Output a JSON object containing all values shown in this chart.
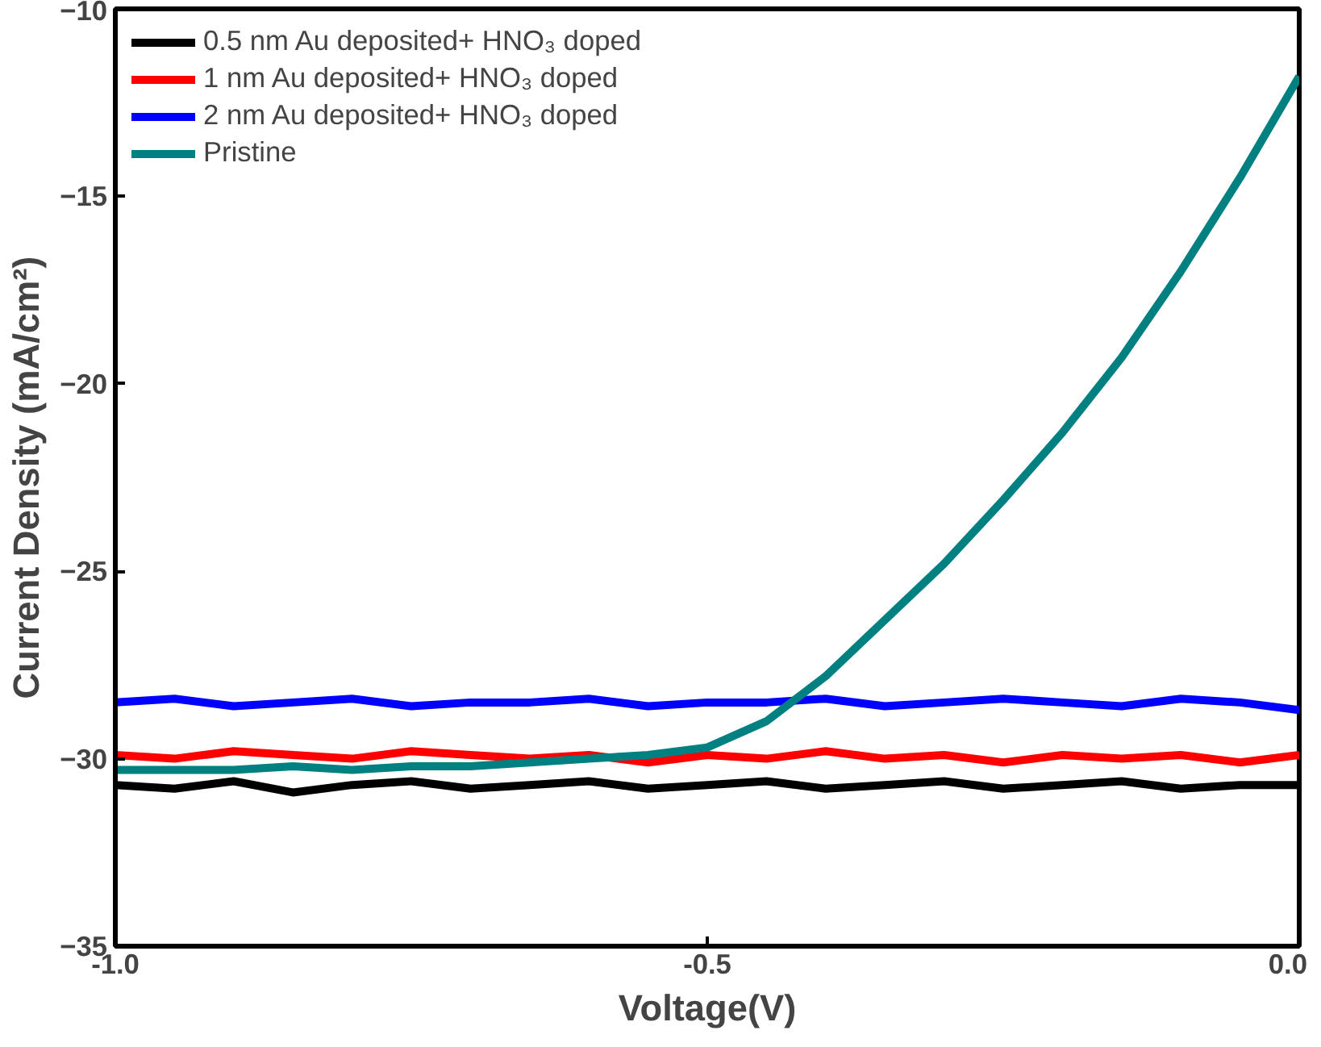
{
  "chart_data": {
    "type": "line",
    "xlabel": "Voltage(V)",
    "ylabel": "Current Density (mA/cm²)",
    "xlim": [
      -1.0,
      0.0
    ],
    "ylim": [
      -35,
      -10
    ],
    "xticks": [
      {
        "value": -1.0,
        "label": "-1.0"
      },
      {
        "value": -0.5,
        "label": "-0.5"
      },
      {
        "value": 0.0,
        "label": "0.0"
      }
    ],
    "yticks": [
      -35,
      -30,
      -25,
      -20,
      -15,
      -10
    ],
    "grid": false,
    "legend": "top left",
    "line_style": "solid",
    "marker": "none",
    "x": [
      -1.0,
      -0.95,
      -0.9,
      -0.85,
      -0.8,
      -0.75,
      -0.7,
      -0.65,
      -0.6,
      -0.55,
      -0.5,
      -0.45,
      -0.4,
      -0.35,
      -0.3,
      -0.25,
      -0.2,
      -0.15,
      -0.1,
      -0.05,
      0.0
    ],
    "series": [
      {
        "name": "0.5 nm Au deposited+ HNO₃ doped",
        "color": "#000000",
        "values": [
          -30.7,
          -30.8,
          -30.6,
          -30.9,
          -30.7,
          -30.6,
          -30.8,
          -30.7,
          -30.6,
          -30.8,
          -30.7,
          -30.6,
          -30.8,
          -30.7,
          -30.6,
          -30.8,
          -30.7,
          -30.6,
          -30.8,
          -30.7,
          -30.7
        ]
      },
      {
        "name": "1 nm Au deposited+ HNO₃ doped",
        "color": "#ff0000",
        "values": [
          -29.9,
          -30.0,
          -29.8,
          -29.9,
          -30.0,
          -29.8,
          -29.9,
          -30.0,
          -29.9,
          -30.1,
          -29.9,
          -30.0,
          -29.8,
          -30.0,
          -29.9,
          -30.1,
          -29.9,
          -30.0,
          -29.9,
          -30.1,
          -29.9
        ]
      },
      {
        "name": "2 nm Au deposited+ HNO₃ doped",
        "color": "#0000ff",
        "values": [
          -28.5,
          -28.4,
          -28.6,
          -28.5,
          -28.4,
          -28.6,
          -28.5,
          -28.5,
          -28.4,
          -28.6,
          -28.5,
          -28.5,
          -28.4,
          -28.6,
          -28.5,
          -28.4,
          -28.5,
          -28.6,
          -28.4,
          -28.5,
          -28.7
        ]
      },
      {
        "name": "Pristine",
        "color": "#008080",
        "values": [
          -30.3,
          -30.3,
          -30.3,
          -30.2,
          -30.3,
          -30.2,
          -30.2,
          -30.1,
          -30.0,
          -29.9,
          -29.7,
          -29.0,
          -27.8,
          -26.3,
          -24.8,
          -23.1,
          -21.3,
          -19.3,
          -17.0,
          -14.5,
          -11.8
        ]
      }
    ]
  }
}
